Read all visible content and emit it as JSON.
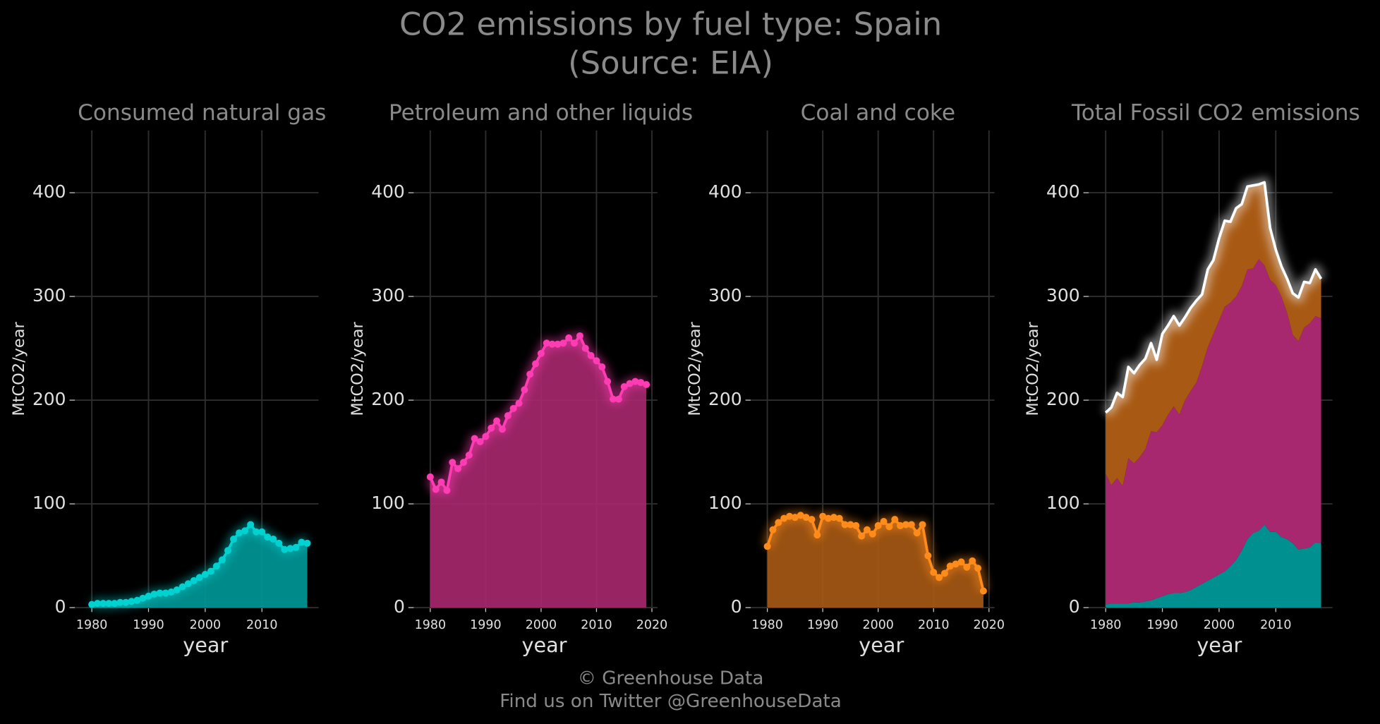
{
  "title": "CO2 emissions by fuel type: Spain",
  "subtitle": "(Source: EIA)",
  "footer": [
    "© Greenhouse Data",
    "Find us on Twitter @GreenhouseData"
  ],
  "chart_data": [
    {
      "type": "area",
      "title": "Consumed natural gas",
      "xlabel": "year",
      "ylabel": "MtCO2/year",
      "color": "#00d2d2",
      "fill": "#009999",
      "x": [
        1980,
        1981,
        1982,
        1983,
        1984,
        1985,
        1986,
        1987,
        1988,
        1989,
        1990,
        1991,
        1992,
        1993,
        1994,
        1995,
        1996,
        1997,
        1998,
        1999,
        2000,
        2001,
        2002,
        2003,
        2004,
        2005,
        2006,
        2007,
        2008,
        2009,
        2010,
        2011,
        2012,
        2013,
        2014,
        2015,
        2016,
        2017,
        2018
      ],
      "values": [
        3,
        4,
        4,
        4,
        4,
        5,
        5,
        6,
        7,
        9,
        11,
        13,
        14,
        14,
        15,
        17,
        20,
        23,
        26,
        29,
        32,
        35,
        40,
        46,
        55,
        66,
        72,
        74,
        80,
        73,
        73,
        68,
        66,
        62,
        56,
        57,
        58,
        63,
        62
      ],
      "xlim": [
        1977,
        2020
      ],
      "ylim": [
        0,
        460
      ],
      "xticks": [
        1980,
        1990,
        2000,
        2010
      ],
      "yticks": [
        0,
        100,
        200,
        300,
        400
      ],
      "grid": true
    },
    {
      "type": "area",
      "title": "Petroleum and other liquids",
      "xlabel": "year",
      "ylabel": "MtCO2/year",
      "color": "#ff3cb4",
      "fill": "#a8286f",
      "x": [
        1980,
        1981,
        1982,
        1983,
        1984,
        1985,
        1986,
        1987,
        1988,
        1989,
        1990,
        1991,
        1992,
        1993,
        1994,
        1995,
        1996,
        1997,
        1998,
        1999,
        2000,
        2001,
        2002,
        2003,
        2004,
        2005,
        2006,
        2007,
        2008,
        2009,
        2010,
        2011,
        2012,
        2013,
        2014,
        2015,
        2016,
        2017,
        2018,
        2019
      ],
      "values": [
        126,
        114,
        121,
        113,
        140,
        134,
        140,
        147,
        163,
        160,
        165,
        173,
        180,
        172,
        185,
        192,
        197,
        210,
        225,
        235,
        245,
        255,
        254,
        254,
        255,
        260,
        255,
        262,
        250,
        243,
        238,
        232,
        218,
        201,
        201,
        213,
        216,
        218,
        217,
        215
      ],
      "xlim": [
        1977,
        2021
      ],
      "ylim": [
        0,
        460
      ],
      "xticks": [
        1980,
        1990,
        2000,
        2010,
        2020
      ],
      "yticks": [
        0,
        100,
        200,
        300,
        400
      ],
      "grid": true
    },
    {
      "type": "area",
      "title": "Coal and coke",
      "xlabel": "year",
      "ylabel": "MtCO2/year",
      "color": "#ff8c1a",
      "fill": "#a85a14",
      "x": [
        1980,
        1981,
        1982,
        1983,
        1984,
        1985,
        1986,
        1987,
        1988,
        1989,
        1990,
        1991,
        1992,
        1993,
        1994,
        1995,
        1996,
        1997,
        1998,
        1999,
        2000,
        2001,
        2002,
        2003,
        2004,
        2005,
        2006,
        2007,
        2008,
        2009,
        2010,
        2011,
        2012,
        2013,
        2014,
        2015,
        2016,
        2017,
        2018,
        2019
      ],
      "values": [
        59,
        75,
        82,
        86,
        88,
        87,
        89,
        87,
        85,
        70,
        88,
        86,
        87,
        86,
        80,
        80,
        79,
        69,
        75,
        71,
        79,
        83,
        78,
        85,
        79,
        80,
        80,
        72,
        80,
        50,
        34,
        29,
        33,
        40,
        42,
        44,
        39,
        45,
        38,
        16
      ],
      "xlim": [
        1977,
        2021
      ],
      "ylim": [
        0,
        460
      ],
      "xticks": [
        1980,
        1990,
        2000,
        2010,
        2020
      ],
      "yticks": [
        0,
        100,
        200,
        300,
        400
      ],
      "grid": true
    },
    {
      "type": "stacked_area",
      "title": "Total Fossil CO2 emissions",
      "xlabel": "year",
      "ylabel": "MtCO2/year",
      "x": [
        1980,
        1981,
        1982,
        1983,
        1984,
        1985,
        1986,
        1987,
        1988,
        1989,
        1990,
        1991,
        1992,
        1993,
        1994,
        1995,
        1996,
        1997,
        1998,
        1999,
        2000,
        2001,
        2002,
        2003,
        2004,
        2005,
        2006,
        2007,
        2008,
        2009,
        2010,
        2011,
        2012,
        2013,
        2014,
        2015,
        2016,
        2017,
        2018
      ],
      "series": [
        {
          "color": "#009090",
          "values": [
            3,
            4,
            4,
            4,
            4,
            5,
            5,
            6,
            7,
            9,
            11,
            13,
            14,
            14,
            15,
            17,
            20,
            23,
            26,
            29,
            32,
            35,
            40,
            46,
            55,
            66,
            72,
            74,
            80,
            73,
            73,
            68,
            66,
            62,
            56,
            57,
            58,
            63,
            62
          ]
        },
        {
          "color": "#a8286f",
          "values": [
            126,
            114,
            121,
            113,
            140,
            134,
            140,
            147,
            163,
            160,
            165,
            173,
            180,
            172,
            185,
            192,
            197,
            210,
            225,
            235,
            245,
            255,
            254,
            254,
            255,
            260,
            255,
            262,
            250,
            243,
            238,
            232,
            218,
            201,
            201,
            213,
            216,
            218,
            217
          ]
        },
        {
          "color": "#a85a14",
          "values": [
            59,
            75,
            82,
            86,
            88,
            87,
            89,
            87,
            85,
            70,
            88,
            86,
            87,
            86,
            80,
            80,
            79,
            69,
            75,
            71,
            79,
            83,
            78,
            85,
            79,
            80,
            80,
            72,
            80,
            50,
            34,
            29,
            33,
            40,
            42,
            44,
            39,
            45,
            38
          ]
        }
      ],
      "line": {
        "color": "#ffffff",
        "values": [
          188,
          193,
          207,
          203,
          232,
          226,
          234,
          240,
          255,
          239,
          264,
          272,
          281,
          272,
          280,
          289,
          296,
          302,
          326,
          335,
          356,
          373,
          372,
          385,
          389,
          406,
          407,
          408,
          410,
          366,
          345,
          329,
          317,
          303,
          299,
          314,
          313,
          326,
          317
        ]
      },
      "xlim": [
        1977,
        2020
      ],
      "ylim": [
        0,
        460
      ],
      "xticks": [
        1980,
        1990,
        2000,
        2010
      ],
      "yticks": [
        0,
        100,
        200,
        300,
        400
      ],
      "grid": true
    }
  ]
}
